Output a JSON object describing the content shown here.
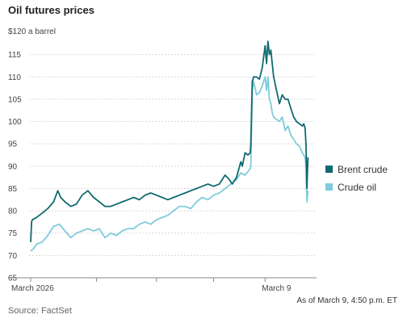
{
  "chart_data": {
    "type": "line",
    "title": "Oil futures prices",
    "ylabel_unit": "$120 a barrel",
    "source": "Source: FactSet",
    "note": "As of March 9, 4:50 p.m. ET",
    "ylim": [
      65,
      120
    ],
    "yticks": [
      65,
      70,
      75,
      80,
      85,
      90,
      95,
      100,
      105,
      110,
      115
    ],
    "xlim": [
      0,
      100
    ],
    "xtick_labels": [
      {
        "x": 0,
        "label": "March 2026"
      },
      {
        "x": 23,
        "label": ""
      },
      {
        "x": 44,
        "label": ""
      },
      {
        "x": 64,
        "label": ""
      },
      {
        "x": 82,
        "label": "March 9"
      }
    ],
    "grid": true,
    "legend": "right",
    "series": [
      {
        "name": "Brent crude",
        "color": "#0f6a70",
        "x": [
          0,
          0.3,
          0.6,
          2,
          4,
          6,
          8,
          9.5,
          10.5,
          12,
          14,
          16,
          18,
          20,
          22,
          24,
          26,
          28,
          30,
          32,
          34,
          36,
          38,
          40,
          42,
          44,
          46,
          48,
          50,
          52,
          54,
          56,
          58,
          60,
          62,
          64,
          66,
          68,
          69.5,
          70.5,
          72,
          73.5,
          74,
          75,
          76,
          76.8,
          77,
          77.5,
          78,
          79,
          80,
          81,
          82,
          82.5,
          83,
          83.5,
          84,
          84.5,
          85,
          86,
          87,
          88,
          89,
          90,
          91,
          92,
          93,
          94,
          95,
          95.5,
          96,
          96.3,
          96.6,
          97
        ],
        "values": [
          73,
          77.5,
          78,
          78.5,
          79.5,
          80.5,
          82,
          84.5,
          83,
          82,
          81,
          81.5,
          83.5,
          84.5,
          83,
          82,
          81,
          81,
          81.5,
          82,
          82.5,
          83,
          82.5,
          83.5,
          84,
          83.5,
          83,
          82.5,
          83,
          83.5,
          84,
          84.5,
          85,
          85.5,
          86,
          85.5,
          86,
          88,
          87,
          86,
          87.5,
          91,
          90,
          93,
          92.5,
          93,
          95,
          109,
          110,
          110,
          109.5,
          112,
          117,
          113,
          118,
          115,
          116,
          113,
          110,
          107,
          104,
          106,
          105,
          105,
          103,
          101,
          100,
          99.5,
          99,
          99.5,
          98.5,
          95,
          85,
          92
        ]
      },
      {
        "name": "Crude oil",
        "color": "#7fcbdb",
        "x": [
          0,
          1,
          2,
          4,
          6,
          8,
          10,
          12,
          14,
          16,
          18,
          20,
          22,
          24,
          26,
          28,
          30,
          32,
          34,
          36,
          38,
          40,
          42,
          44,
          46,
          48,
          50,
          52,
          54,
          56,
          58,
          60,
          62,
          64,
          66,
          68,
          70,
          72,
          73.5,
          75,
          76.8,
          77,
          77.5,
          78,
          79,
          80,
          81,
          82,
          82.5,
          83,
          83.5,
          84,
          84.5,
          85,
          86,
          87,
          88,
          89,
          90,
          91,
          92,
          93,
          94,
          95,
          95.5,
          96,
          96.3,
          96.6,
          97
        ],
        "values": [
          71,
          71.5,
          72.5,
          73,
          74.5,
          76.5,
          77,
          75.5,
          74,
          75,
          75.5,
          76,
          75.5,
          76,
          74,
          75,
          74.5,
          75.5,
          76,
          76,
          77,
          77.5,
          77,
          78,
          78.5,
          79,
          80,
          81,
          81,
          80.5,
          82,
          83,
          82.5,
          83.5,
          84,
          85,
          86,
          87,
          88.5,
          88,
          89.5,
          90,
          107,
          109,
          106,
          106.5,
          108,
          110,
          107,
          110,
          105,
          104,
          102,
          101,
          100.5,
          100,
          101,
          98,
          99,
          97,
          96,
          95,
          94.5,
          93,
          92.5,
          92,
          90,
          82,
          84.5
        ]
      }
    ]
  }
}
